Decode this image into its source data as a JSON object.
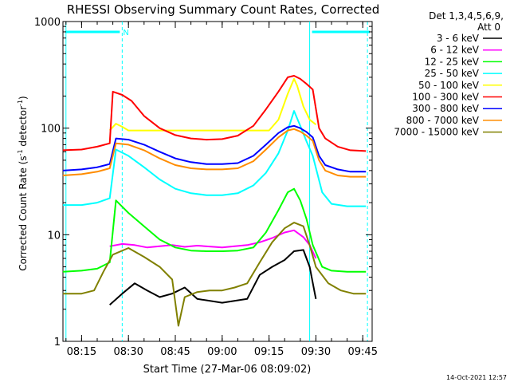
{
  "chart_data": {
    "type": "line",
    "title": "RHESSI Observing Summary Count Rates, Corrected",
    "xlabel": "Start Time (27-Mar-06 08:09:02)",
    "ylabel_main": "Corrected Count Rate (s",
    "ylabel_sup1": "-1",
    "ylabel_mid": " detector",
    "ylabel_sup2": "-1",
    "ylabel_end": ")",
    "yscale": "log",
    "ylim": [
      1,
      1000
    ],
    "xlim": [
      "08:09:02",
      "09:48:00"
    ],
    "x_ticks": [
      "08:15",
      "08:30",
      "08:45",
      "09:00",
      "09:15",
      "09:30",
      "09:45"
    ],
    "y_ticks": [
      "1",
      "10",
      "100",
      "1000"
    ],
    "grid": false,
    "legend": {
      "header": [
        "Det 1,3,4,5,6,9,",
        "Att 0"
      ],
      "placement": "right"
    },
    "footer_timestamp": "14-Oct-2021 12:57",
    "annotations": {
      "night_bars": [
        {
          "start": "08:09:02",
          "end": "08:28:00",
          "label": "N",
          "level": 800
        },
        {
          "start": "09:28:00",
          "end": "09:48:00",
          "label": "",
          "level": 800
        }
      ],
      "vertical_lines": [
        {
          "time": "08:10:00",
          "style": "solid"
        },
        {
          "time": "08:28:00",
          "style": "dashed"
        },
        {
          "time": "09:28:00",
          "style": "solid"
        },
        {
          "time": "09:46:30",
          "style": "dashed"
        }
      ]
    },
    "series": [
      {
        "name": "3 - 6 keV",
        "color": "#000000",
        "x": [
          "08:24",
          "08:28",
          "08:32",
          "08:36",
          "08:40",
          "08:44",
          "08:48",
          "08:52",
          "09:00",
          "09:08",
          "09:12",
          "09:16",
          "09:20",
          "09:23",
          "09:26",
          "09:28",
          "09:30"
        ],
        "y": [
          2.2,
          2.8,
          3.5,
          3.0,
          2.6,
          2.8,
          3.2,
          2.5,
          2.3,
          2.5,
          4.2,
          5.0,
          5.8,
          7.0,
          7.2,
          5.0,
          2.5
        ]
      },
      {
        "name": "6 - 12 keV",
        "color": "#ff00ff",
        "x": [
          "08:24",
          "08:28",
          "08:32",
          "08:36",
          "08:40",
          "08:44",
          "08:48",
          "08:52",
          "09:00",
          "09:08",
          "09:12",
          "09:16",
          "09:20",
          "09:23",
          "09:26",
          "09:28",
          "09:30"
        ],
        "y": [
          7.8,
          8.2,
          8.0,
          7.6,
          7.8,
          8.0,
          7.7,
          7.9,
          7.6,
          8.0,
          8.5,
          9.3,
          10.5,
          11.0,
          9.5,
          8.0,
          6.0
        ]
      },
      {
        "name": "12 - 25 keV",
        "color": "#00ff00",
        "x": [
          "08:09",
          "08:15",
          "08:20",
          "08:24",
          "08:26",
          "08:30",
          "08:35",
          "08:40",
          "08:45",
          "08:50",
          "08:55",
          "09:00",
          "09:05",
          "09:10",
          "09:14",
          "09:18",
          "09:21",
          "09:23",
          "09:25",
          "09:27",
          "09:29",
          "09:32",
          "09:35",
          "09:40",
          "09:46"
        ],
        "y": [
          4.5,
          4.6,
          4.8,
          5.5,
          21.0,
          16.0,
          12.0,
          9.0,
          7.6,
          7.1,
          7.0,
          7.0,
          7.1,
          7.6,
          10.5,
          17.0,
          25.0,
          27.0,
          21.0,
          14.0,
          8.0,
          5.0,
          4.6,
          4.5,
          4.5
        ]
      },
      {
        "name": "25 - 50 keV",
        "color": "#00ffff",
        "x": [
          "08:09",
          "08:15",
          "08:20",
          "08:24",
          "08:26",
          "08:30",
          "08:35",
          "08:40",
          "08:45",
          "08:50",
          "08:55",
          "09:00",
          "09:05",
          "09:10",
          "09:14",
          "09:18",
          "09:21",
          "09:23",
          "09:25",
          "09:27",
          "09:29",
          "09:32",
          "09:35",
          "09:40",
          "09:46"
        ],
        "y": [
          19.0,
          19.0,
          20.0,
          22.0,
          63.0,
          55.0,
          43.0,
          33.0,
          27.0,
          24.5,
          23.5,
          23.5,
          24.5,
          29.0,
          38.0,
          58.0,
          95.0,
          145.0,
          105.0,
          75.0,
          55.0,
          25.0,
          19.5,
          18.5,
          18.5
        ]
      },
      {
        "name": "50 - 100 keV",
        "color": "#ffff00",
        "x": [
          "08:24",
          "08:26",
          "08:28",
          "08:30",
          "09:15",
          "09:18",
          "09:21",
          "09:23",
          "09:24",
          "09:26",
          "09:28",
          "09:30"
        ],
        "y": [
          95.0,
          110.0,
          103.0,
          95.0,
          95.0,
          120.0,
          210.0,
          290.0,
          250.0,
          160.0,
          120.0,
          108.0
        ]
      },
      {
        "name": "100 - 300 keV",
        "color": "#ff0000",
        "x": [
          "08:09",
          "08:15",
          "08:20",
          "08:24",
          "08:25",
          "08:28",
          "08:31",
          "08:35",
          "08:40",
          "08:45",
          "08:50",
          "08:55",
          "09:00",
          "09:05",
          "09:10",
          "09:14",
          "09:18",
          "09:21",
          "09:23",
          "09:25",
          "09:27",
          "09:29",
          "09:31",
          "09:33",
          "09:37",
          "09:41",
          "09:46"
        ],
        "y": [
          62.0,
          63.0,
          67.0,
          72.0,
          220.0,
          205.0,
          180.0,
          130.0,
          100.0,
          86.0,
          80.0,
          78.0,
          79.0,
          85.0,
          105.0,
          150.0,
          220.0,
          300.0,
          310.0,
          290.0,
          260.0,
          230.0,
          100.0,
          80.0,
          67.0,
          62.0,
          61.0
        ]
      },
      {
        "name": "300 - 800 keV",
        "color": "#0000ff",
        "x": [
          "08:09",
          "08:15",
          "08:20",
          "08:24",
          "08:26",
          "08:30",
          "08:35",
          "08:40",
          "08:45",
          "08:50",
          "08:55",
          "09:00",
          "09:05",
          "09:10",
          "09:14",
          "09:18",
          "09:21",
          "09:23",
          "09:25",
          "09:27",
          "09:29",
          "09:31",
          "09:33",
          "09:37",
          "09:41",
          "09:46"
        ],
        "y": [
          40.0,
          41.0,
          43.0,
          46.0,
          80.0,
          78.0,
          70.0,
          60.0,
          52.0,
          48.0,
          46.0,
          46.0,
          47.0,
          55.0,
          70.0,
          90.0,
          102.0,
          105.0,
          100.0,
          92.0,
          82.0,
          55.0,
          45.0,
          41.0,
          39.0,
          39.0
        ]
      },
      {
        "name": "800 - 7000 keV",
        "color": "#ff8c00",
        "x": [
          "08:09",
          "08:15",
          "08:20",
          "08:24",
          "08:26",
          "08:30",
          "08:35",
          "08:40",
          "08:45",
          "08:50",
          "08:55",
          "09:00",
          "09:05",
          "09:10",
          "09:14",
          "09:18",
          "09:21",
          "09:23",
          "09:25",
          "09:27",
          "09:29",
          "09:31",
          "09:33",
          "09:37",
          "09:41",
          "09:46"
        ],
        "y": [
          36.0,
          37.0,
          39.0,
          42.0,
          72.0,
          70.0,
          62.0,
          52.0,
          45.0,
          42.0,
          41.0,
          41.0,
          42.0,
          49.0,
          63.0,
          82.0,
          95.0,
          98.0,
          93.0,
          85.0,
          76.0,
          50.0,
          40.0,
          36.0,
          35.0,
          35.0
        ]
      },
      {
        "name": "7000 - 15000 keV",
        "color": "#808000",
        "x": [
          "08:09",
          "08:15",
          "08:19",
          "08:22",
          "08:25",
          "08:30",
          "08:35",
          "08:40",
          "08:44",
          "08:46",
          "08:48",
          "08:52",
          "08:56",
          "09:00",
          "09:04",
          "09:08",
          "09:12",
          "09:16",
          "09:20",
          "09:23",
          "09:26",
          "09:28",
          "09:30",
          "09:34",
          "09:38",
          "09:42",
          "09:46"
        ],
        "y": [
          2.8,
          2.8,
          3.0,
          4.5,
          6.5,
          7.5,
          6.2,
          5.0,
          3.8,
          1.4,
          2.6,
          2.9,
          3.0,
          3.0,
          3.2,
          3.5,
          5.5,
          8.5,
          11.5,
          13.0,
          12.0,
          8.0,
          5.0,
          3.5,
          3.0,
          2.8,
          2.8
        ]
      }
    ]
  }
}
